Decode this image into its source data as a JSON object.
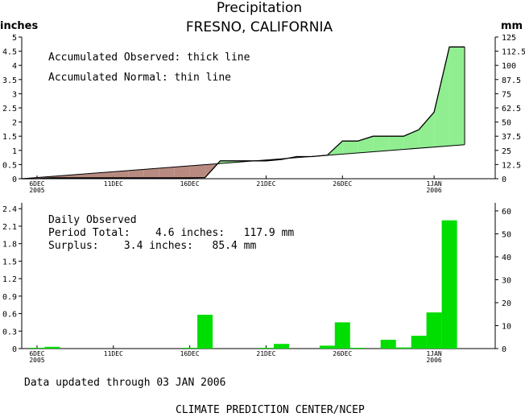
{
  "header": {
    "title": "Precipitation",
    "subtitle": "FRESNO, CALIFORNIA"
  },
  "footer": {
    "updated": "Data updated through 03 JAN 2006",
    "credit": "CLIMATE PREDICTION CENTER/NCEP"
  },
  "colors": {
    "surplus_fill": "#90ee90",
    "deficit_fill": "#b88a80",
    "bar_fill": "#00dd00",
    "line": "#000000"
  },
  "chart_data": [
    {
      "type": "area",
      "ylabel_left": "inches",
      "ylabel_right": "mm",
      "notes": [
        "Accumulated Observed: thick line",
        "Accumulated Normal: thin line"
      ],
      "ylim": [
        0,
        5
      ],
      "yticks": [
        "0",
        "0.5",
        "1",
        "1.5",
        "2",
        "2.5",
        "3",
        "3.5",
        "4",
        "4.5",
        "5"
      ],
      "ylim_right": [
        0,
        125
      ],
      "yticks_right": [
        "0",
        "12.5",
        "25",
        "37.5",
        "50",
        "62.5",
        "75",
        "87.5",
        "100",
        "112.5",
        "125"
      ],
      "xlim": [
        0,
        31
      ],
      "xticks": [
        {
          "x": 1,
          "label": [
            "6DEC",
            "2005"
          ]
        },
        {
          "x": 6,
          "label": [
            "11DEC"
          ]
        },
        {
          "x": 11,
          "label": [
            "16DEC"
          ]
        },
        {
          "x": 16,
          "label": [
            "21DEC"
          ]
        },
        {
          "x": 21,
          "label": [
            "26DEC"
          ]
        },
        {
          "x": 27,
          "label": [
            "1JAN",
            "2006"
          ]
        }
      ],
      "series": [
        {
          "role": "observed",
          "x": [
            0,
            1,
            2,
            3,
            4,
            5,
            6,
            7,
            8,
            9,
            10,
            11,
            12,
            13,
            14,
            15,
            16,
            17,
            18,
            19,
            20,
            21,
            22,
            23,
            24,
            25,
            26,
            27,
            28,
            29
          ],
          "values": [
            0,
            0,
            0.03,
            0.03,
            0.03,
            0.03,
            0.03,
            0.03,
            0.03,
            0.03,
            0.03,
            0.03,
            0.04,
            0.63,
            0.63,
            0.63,
            0.63,
            0.68,
            0.78,
            0.78,
            0.83,
            1.33,
            1.33,
            1.5,
            1.5,
            1.5,
            1.73,
            2.35,
            4.65,
            4.65
          ]
        },
        {
          "role": "normal",
          "x": [
            0,
            29
          ],
          "values": [
            0,
            1.2
          ]
        }
      ]
    },
    {
      "type": "bar",
      "notes": [
        "Daily Observed",
        "Period Total:    4.6 inches:   117.9 mm",
        "Surplus:    3.4 inches:   85.4 mm"
      ],
      "ylim": [
        0,
        2.5
      ],
      "yticks": [
        "0",
        "0.3",
        "0.6",
        "0.9",
        "1.2",
        "1.5",
        "1.8",
        "2.1",
        "2.4"
      ],
      "ylim_right": [
        0,
        63.5
      ],
      "yticks_right": [
        "0",
        "10",
        "20",
        "30",
        "40",
        "50",
        "60"
      ],
      "xlim": [
        0,
        31
      ],
      "xticks": [
        {
          "x": 1,
          "label": [
            "6DEC",
            "2005"
          ]
        },
        {
          "x": 6,
          "label": [
            "11DEC"
          ]
        },
        {
          "x": 11,
          "label": [
            "16DEC"
          ]
        },
        {
          "x": 16,
          "label": [
            "21DEC"
          ]
        },
        {
          "x": 21,
          "label": [
            "26DEC"
          ]
        },
        {
          "x": 27,
          "label": [
            "1JAN",
            "2006"
          ]
        }
      ],
      "x": [
        1,
        2,
        11,
        12,
        16,
        17,
        20,
        21,
        22,
        24,
        25,
        26,
        27,
        28
      ],
      "values": [
        0.005,
        0.03,
        0.01,
        0.58,
        0.005,
        0.08,
        0.05,
        0.45,
        0.005,
        0.15,
        0.02,
        0.22,
        0.62,
        2.2
      ]
    }
  ]
}
